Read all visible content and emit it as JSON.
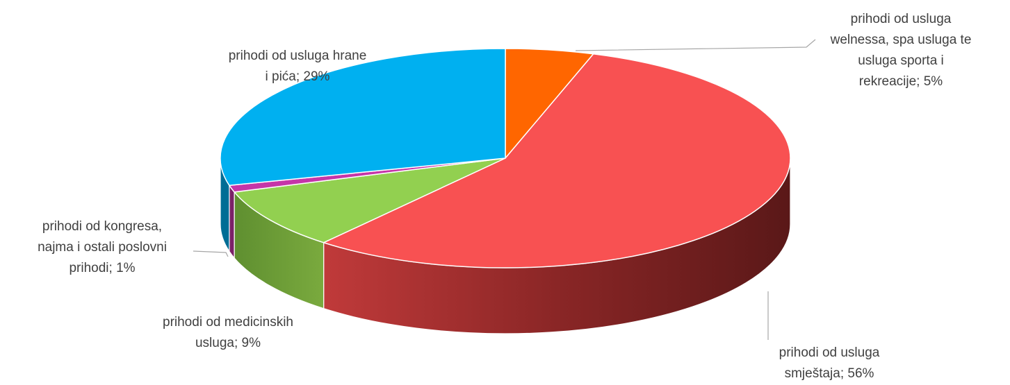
{
  "chart_data": {
    "type": "pie",
    "title": "",
    "legend": "none",
    "slices": [
      {
        "label_lines": [
          "prihodi od usluga",
          "welnessa, spa usluga te",
          "usluga sporta i",
          "rekreacije; 5%"
        ],
        "value": 5,
        "color": "#ff6600"
      },
      {
        "label_lines": [
          "prihodi od usluga",
          "smještaja; 56%"
        ],
        "value": 56,
        "color": "#f85152"
      },
      {
        "label_lines": [
          "prihodi od medicinskih",
          "usluga; 9%"
        ],
        "value": 9,
        "color": "#92d050"
      },
      {
        "label_lines": [
          "prihodi od kongresa,",
          "najma i ostali poslovni",
          "prihodi; 1%"
        ],
        "value": 1,
        "color": "#c535a8"
      },
      {
        "label_lines": [
          "prihodi od usluga hrane",
          "i pića; 29%"
        ],
        "value": 29,
        "color": "#00b0f0"
      }
    ]
  }
}
